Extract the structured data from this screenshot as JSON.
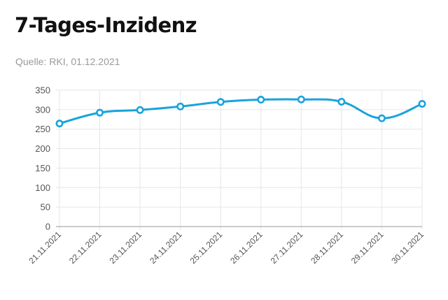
{
  "header": {
    "title": "7-Tages-Inzidenz",
    "source": "Quelle: RKI, 01.12.2021"
  },
  "colors": {
    "series": "#1aa3dd",
    "grid": "#e6e6e6",
    "axis": "#999999",
    "tick_label": "#555555"
  },
  "chart_data": {
    "type": "line",
    "title": "7-Tages-Inzidenz",
    "subtitle": "Quelle: RKI, 01.12.2021",
    "categories": [
      "21.11.2021",
      "22.11.2021",
      "23.11.2021",
      "24.11.2021",
      "25.11.2021",
      "26.11.2021",
      "27.11.2021",
      "28.11.2021",
      "29.11.2021",
      "30.11.2021"
    ],
    "series": [
      {
        "values": [
          264.5,
          292.4,
          299.2,
          308.2,
          320.0,
          325.7,
          326.3,
          320.4,
          277.9,
          315.0
        ]
      }
    ],
    "y_ticks": [
      0,
      50,
      100,
      150,
      200,
      250,
      300,
      350
    ],
    "ylim": [
      0,
      350
    ],
    "xlabel": "",
    "ylabel": "",
    "grid": true,
    "legend": "none",
    "curve": "smooth"
  }
}
